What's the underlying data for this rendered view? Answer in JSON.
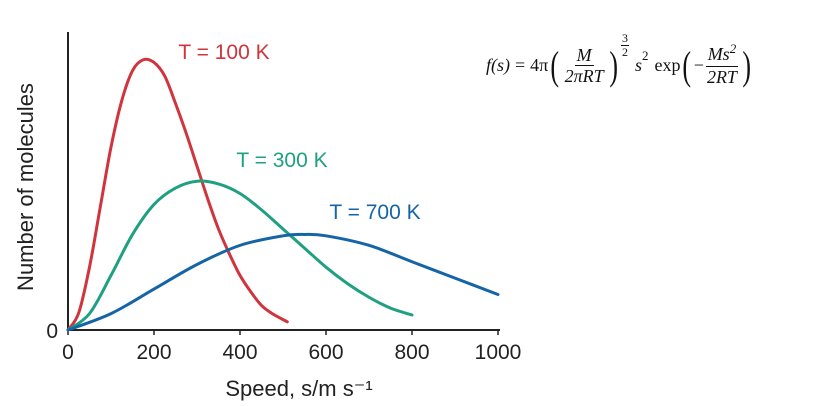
{
  "chart_data": {
    "type": "line",
    "xlabel": "Speed, s/m s⁻¹",
    "ylabel": "Number of molecules",
    "xlim": [
      0,
      1000
    ],
    "ylim": [
      0,
      1
    ],
    "xticks": [
      0,
      200,
      400,
      600,
      800,
      1000
    ],
    "yticks": [
      0
    ],
    "grid": false,
    "series": [
      {
        "name": "T = 100 K",
        "color": "#d0343c",
        "x": [
          0,
          25,
          50,
          75,
          100,
          125,
          150,
          175,
          200,
          225,
          250,
          275,
          300,
          325,
          350,
          375,
          400,
          425,
          450,
          475,
          510
        ],
        "y": [
          0,
          0.063,
          0.23,
          0.45,
          0.67,
          0.84,
          0.95,
          0.99,
          0.98,
          0.93,
          0.83,
          0.72,
          0.6,
          0.48,
          0.37,
          0.28,
          0.2,
          0.14,
          0.09,
          0.06,
          0.03
        ]
      },
      {
        "name": "T = 300 K",
        "color": "#1fa082",
        "x": [
          0,
          50,
          100,
          150,
          200,
          250,
          300,
          350,
          400,
          450,
          500,
          550,
          600,
          650,
          700,
          750,
          800
        ],
        "y": [
          0,
          0.06,
          0.2,
          0.35,
          0.46,
          0.52,
          0.545,
          0.535,
          0.5,
          0.44,
          0.37,
          0.3,
          0.23,
          0.17,
          0.12,
          0.08,
          0.055
        ]
      },
      {
        "name": "T = 700 K",
        "color": "#1565a6",
        "x": [
          0,
          100,
          200,
          300,
          400,
          500,
          550,
          600,
          700,
          800,
          900,
          1000
        ],
        "y": [
          0,
          0.06,
          0.15,
          0.24,
          0.31,
          0.345,
          0.35,
          0.345,
          0.31,
          0.25,
          0.19,
          0.13
        ]
      }
    ],
    "annotations": {
      "formula": {
        "lhs": "f(s)",
        "eq": "=",
        "coef": "4π",
        "num1": "M",
        "den1": "2πRT",
        "exp_num": "3",
        "exp_den": "2",
        "s": "s",
        "s_exp": "2",
        "exp_word": "exp",
        "minus": "−",
        "num2": "Ms",
        "num2_exp": "2",
        "den2": "2RT"
      }
    }
  }
}
